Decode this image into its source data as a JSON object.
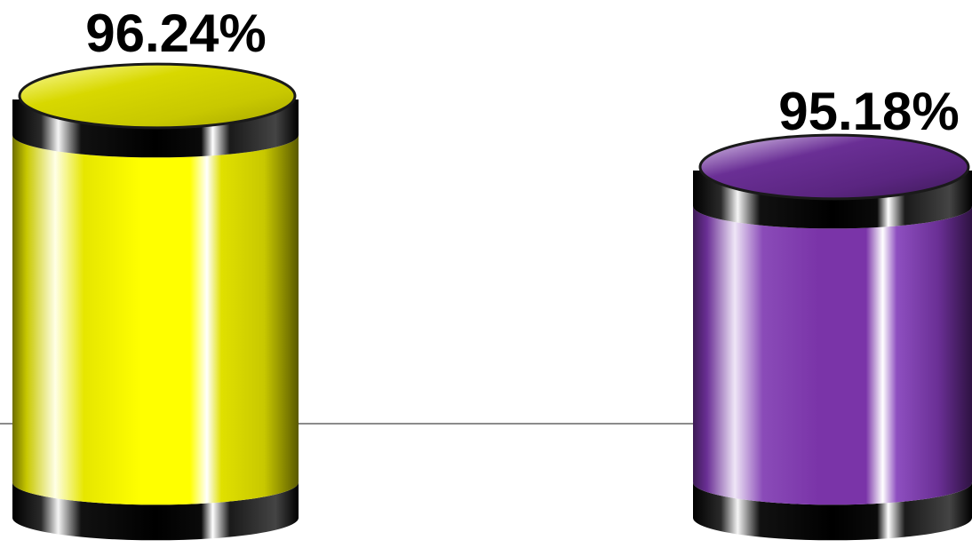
{
  "chart_data": {
    "type": "bar",
    "style": "3d-cylinder",
    "categories": [
      "",
      ""
    ],
    "series": [
      {
        "values": [
          96.24,
          95.18
        ],
        "labels": [
          "96.24%",
          "95.18%"
        ],
        "colors": [
          "#ffff00",
          "#7a34a8"
        ]
      }
    ],
    "title": "",
    "xlabel": "",
    "ylabel": "",
    "ylim": [
      88,
      98
    ],
    "grid": false,
    "legend": "none"
  }
}
